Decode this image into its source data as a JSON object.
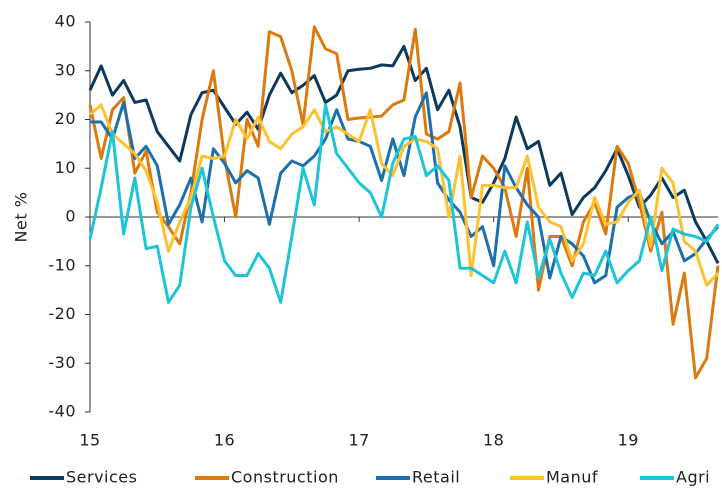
{
  "chart_data": {
    "type": "line",
    "y_label": "Net %",
    "x": [
      15,
      15.083,
      15.167,
      15.25,
      15.333,
      15.417,
      15.5,
      15.583,
      15.667,
      15.75,
      15.833,
      15.917,
      16,
      16.083,
      16.167,
      16.25,
      16.333,
      16.417,
      16.5,
      16.583,
      16.667,
      16.75,
      16.833,
      16.917,
      17,
      17.083,
      17.167,
      17.25,
      17.333,
      17.417,
      17.5,
      17.583,
      17.667,
      17.75,
      17.833,
      17.917,
      18,
      18.083,
      18.167,
      18.25,
      18.333,
      18.417,
      18.5,
      18.583,
      18.667,
      18.75,
      18.833,
      18.917,
      19,
      19.083,
      19.167,
      19.25,
      19.333,
      19.417,
      19.5,
      19.583,
      19.667
    ],
    "series": [
      {
        "name": "Services",
        "color": "#0c3a5e",
        "values": [
          26,
          31,
          25,
          28,
          23.5,
          24,
          17.5,
          14.5,
          11.5,
          21,
          25.5,
          26,
          22.5,
          19,
          21.5,
          18,
          25,
          29.5,
          25.5,
          27,
          29,
          23.5,
          25,
          30,
          30.3,
          30.5,
          31.2,
          31,
          35,
          28,
          30.5,
          22,
          26,
          18.5,
          4,
          3,
          7,
          12,
          20.5,
          14,
          15.5,
          6.5,
          9,
          0.5,
          4,
          6,
          9.5,
          14,
          8.5,
          2,
          4.5,
          8,
          4,
          5.5,
          -1,
          -5,
          -9.5
        ]
      },
      {
        "name": "Construction",
        "color": "#dc7a0f",
        "values": [
          23,
          12,
          22,
          24.5,
          9,
          13.5,
          1,
          -2,
          -5.5,
          5,
          20,
          30,
          12,
          0,
          20,
          14.5,
          38,
          37,
          30,
          19,
          39,
          34.5,
          33.5,
          20,
          20.3,
          20.5,
          20.7,
          23,
          24,
          38.5,
          17,
          16,
          17.5,
          27.5,
          4,
          12.5,
          10,
          6,
          -4,
          10,
          -15,
          -4,
          -4,
          -10,
          -1,
          3,
          -3.5,
          14.5,
          11,
          3,
          -7,
          1,
          -22,
          -11.5,
          -33,
          -29,
          -10
        ]
      },
      {
        "name": "Retail",
        "color": "#1c70ad",
        "values": [
          19.5,
          19.5,
          16,
          23.5,
          12,
          14.5,
          10.5,
          -1.5,
          2.5,
          8,
          -1,
          14,
          11,
          7,
          9.5,
          8,
          -1.5,
          9,
          11.5,
          10.5,
          12.5,
          16,
          22,
          16,
          15.5,
          14.5,
          7.5,
          16,
          8.5,
          20.5,
          25.5,
          7,
          3.5,
          1,
          -4,
          -2,
          -10,
          10.5,
          6,
          2.5,
          0,
          -12.5,
          -4,
          -5.5,
          -8,
          -13.5,
          -12,
          2,
          4,
          5,
          -1,
          -5.5,
          -3,
          -9,
          -7.5,
          -4.5,
          -2
        ]
      },
      {
        "name": "Manuf",
        "color": "#fcc230",
        "values": [
          21,
          23,
          17,
          15,
          13,
          9.5,
          3,
          -7,
          -1,
          4,
          12.5,
          12,
          12.5,
          20,
          16,
          20.5,
          15.5,
          14,
          17,
          18.5,
          22,
          17.5,
          18.5,
          17,
          15.5,
          22,
          11,
          8.5,
          14.5,
          16,
          15.5,
          14,
          0,
          12.5,
          -12,
          6.5,
          6.5,
          6,
          6,
          12.5,
          2,
          -1,
          -2,
          -9,
          -5.5,
          4,
          -1.5,
          -1,
          3,
          5.5,
          -6,
          10,
          7,
          -5,
          -7,
          -14,
          -11.5
        ]
      },
      {
        "name": "Agri",
        "color": "#1ec4d7",
        "values": [
          -4.5,
          6,
          17.5,
          -3.5,
          8,
          -6.5,
          -6,
          -17.5,
          -14,
          2,
          10,
          0,
          -9,
          -12,
          -12,
          -7.5,
          -10.5,
          -17.5,
          -4,
          10,
          2.5,
          23,
          13,
          10,
          7,
          5,
          0,
          11,
          16,
          16.5,
          8.5,
          10.5,
          7.5,
          -10.5,
          -10.5,
          -12,
          -13.5,
          -7,
          -13.5,
          -1,
          -12.5,
          -4.5,
          -11.5,
          -16.5,
          -11.5,
          -12,
          -7,
          -13.5,
          -11,
          -9,
          0,
          -11,
          -2.5,
          -3.5,
          -4,
          -5,
          -1.5
        ]
      }
    ],
    "xlim": [
      15,
      19.667
    ],
    "xticks": [
      15,
      16,
      17,
      18,
      19
    ],
    "ylim": [
      -40,
      40
    ],
    "yticks": [
      40,
      30,
      20,
      10,
      0,
      -10,
      -20,
      -30,
      -40
    ],
    "grid": false,
    "legend": "bottom"
  }
}
